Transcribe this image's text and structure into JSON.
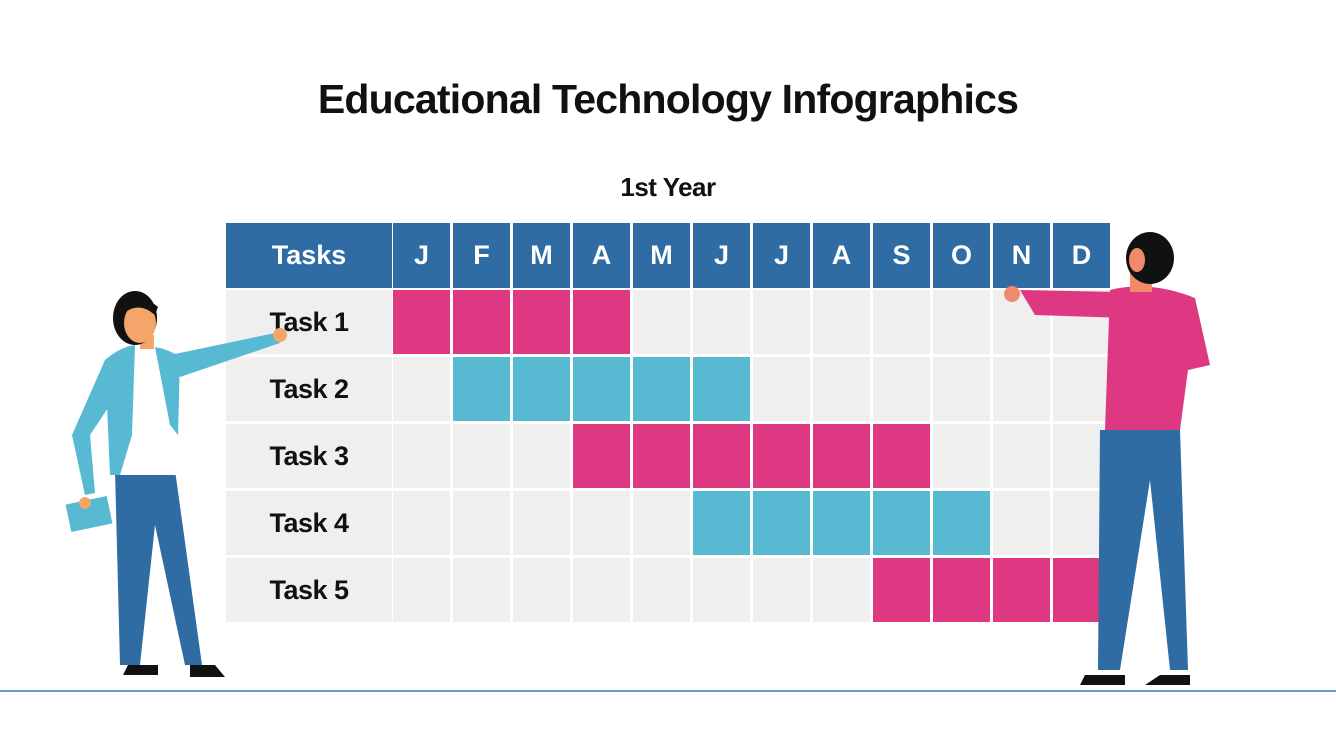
{
  "title": "Educational Technology Infographics",
  "subtitle": "1st Year",
  "header": {
    "tasks_label": "Tasks",
    "months": [
      "J",
      "F",
      "M",
      "A",
      "M",
      "J",
      "J",
      "A",
      "S",
      "O",
      "N",
      "D"
    ]
  },
  "colors": {
    "header": "#2f6ca3",
    "pink": "#de3882",
    "cyan": "#58b9d3",
    "empty": "#efefef"
  },
  "tasks": [
    {
      "label": "Task 1",
      "start_month": 1,
      "end_month": 4,
      "color": "pink"
    },
    {
      "label": "Task 2",
      "start_month": 2,
      "end_month": 6,
      "color": "cyan"
    },
    {
      "label": "Task 3",
      "start_month": 4,
      "end_month": 9,
      "color": "pink"
    },
    {
      "label": "Task 4",
      "start_month": 6,
      "end_month": 10,
      "color": "cyan"
    },
    {
      "label": "Task 5",
      "start_month": 9,
      "end_month": 12,
      "color": "pink"
    }
  ]
}
